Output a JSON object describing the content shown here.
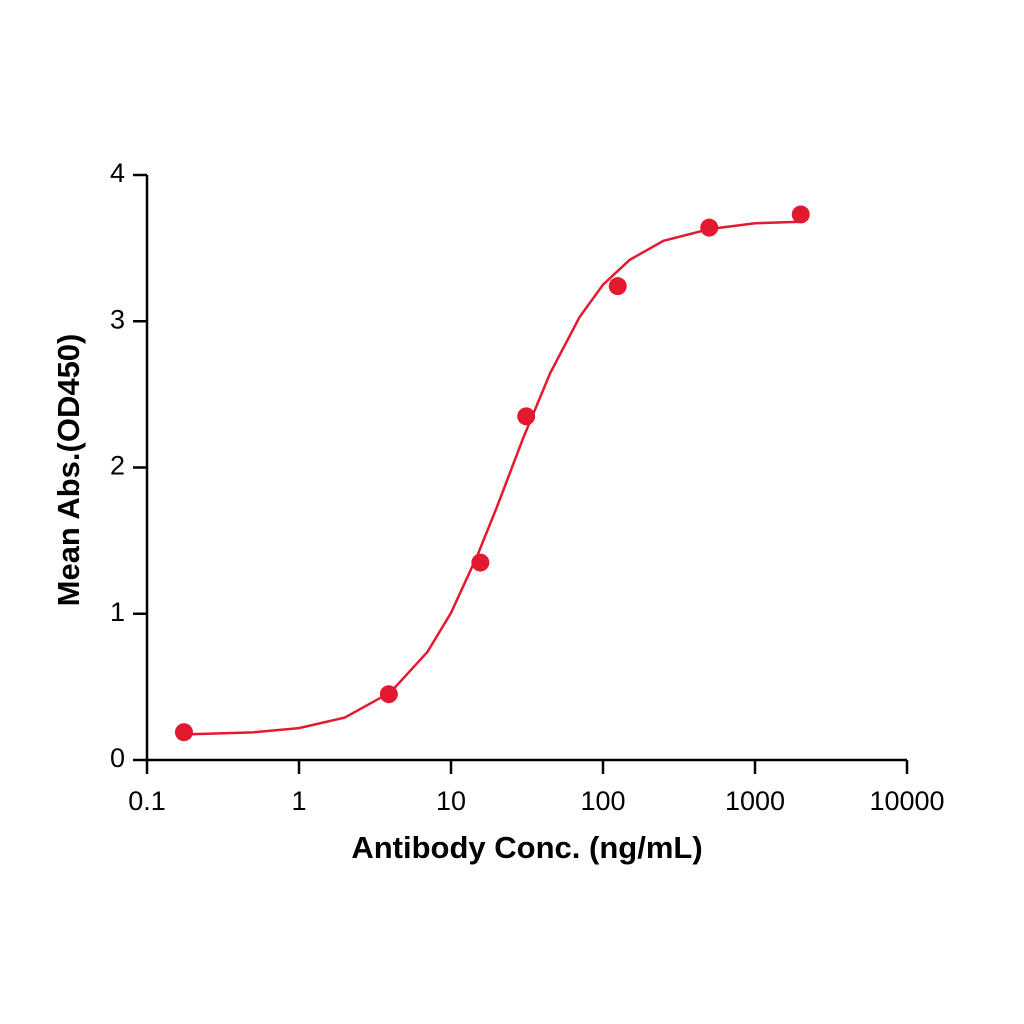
{
  "chart_data": {
    "type": "scatter",
    "x_label": "Antibody Conc. (ng/mL)",
    "y_label": "Mean Abs.(OD450)",
    "x_scale": "log",
    "xlim": [
      0.1,
      10000
    ],
    "xticks": [
      0.1,
      1,
      10,
      100,
      1000,
      10000
    ],
    "ylim": [
      0,
      4
    ],
    "yticks": [
      0,
      1,
      2,
      3,
      4
    ],
    "series": [
      {
        "mode": "markers",
        "color": "#e31a2f",
        "x": [
          0.175,
          3.9,
          15.6,
          31.25,
          125,
          500,
          2000
        ],
        "values": [
          0.19,
          0.45,
          1.35,
          2.35,
          3.24,
          3.64,
          3.73
        ]
      },
      {
        "mode": "line",
        "color": "#e31a2f",
        "x": [
          0.18,
          0.5,
          1,
          2,
          4,
          7,
          10,
          15,
          20,
          30,
          45,
          70,
          100,
          150,
          250,
          500,
          1000,
          2000
        ],
        "values": [
          0.175,
          0.189,
          0.218,
          0.29,
          0.463,
          0.739,
          1.006,
          1.405,
          1.727,
          2.207,
          2.647,
          3.027,
          3.25,
          3.42,
          3.55,
          3.63,
          3.67,
          3.68
        ]
      }
    ]
  }
}
